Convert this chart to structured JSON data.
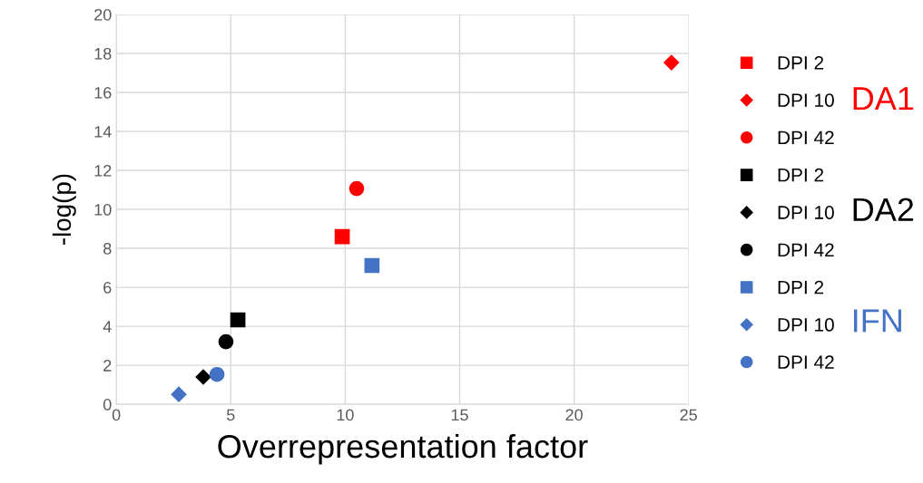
{
  "chart_data": {
    "type": "scatter",
    "xlabel": "Overrepresentation factor",
    "ylabel": "-log(p)",
    "xlim": [
      0,
      25
    ],
    "xticks": [
      0,
      5,
      10,
      15,
      20,
      25
    ],
    "ylim": [
      0,
      20
    ],
    "yticks": [
      0,
      2,
      4,
      6,
      8,
      10,
      12,
      14,
      16,
      18,
      20
    ],
    "grid": true,
    "legend": "right",
    "annotations": [
      "DA1",
      "DA2",
      "IFN"
    ],
    "series": [
      {
        "name": "DPI 2",
        "color": "#ff0000",
        "marker": "square",
        "x": [
          9.87
        ],
        "values": [
          8.6
        ]
      },
      {
        "name": "DPI 10",
        "color": "#ff0000",
        "marker": "diamond",
        "x": [
          24.25
        ],
        "values": [
          17.53
        ]
      },
      {
        "name": "DPI 42",
        "color": "#ff0000",
        "marker": "circle",
        "x": [
          10.5
        ],
        "values": [
          11.07
        ]
      },
      {
        "name": "DPI 2",
        "color": "#000000",
        "marker": "square",
        "x": [
          5.31
        ],
        "values": [
          4.33
        ]
      },
      {
        "name": "DPI 10",
        "color": "#000000",
        "marker": "diamond",
        "x": [
          3.8
        ],
        "values": [
          1.4
        ]
      },
      {
        "name": "DPI 42",
        "color": "#000000",
        "marker": "circle",
        "x": [
          4.79
        ],
        "values": [
          3.21
        ]
      },
      {
        "name": "DPI 2",
        "color": "#4472c4",
        "marker": "square",
        "x": [
          11.17
        ],
        "values": [
          7.12
        ]
      },
      {
        "name": "DPI 10",
        "color": "#4472c4",
        "marker": "diamond",
        "x": [
          2.73
        ],
        "values": [
          0.51
        ]
      },
      {
        "name": "DPI 42",
        "color": "#4472c4",
        "marker": "circle",
        "x": [
          4.4
        ],
        "values": [
          1.53
        ]
      }
    ]
  }
}
